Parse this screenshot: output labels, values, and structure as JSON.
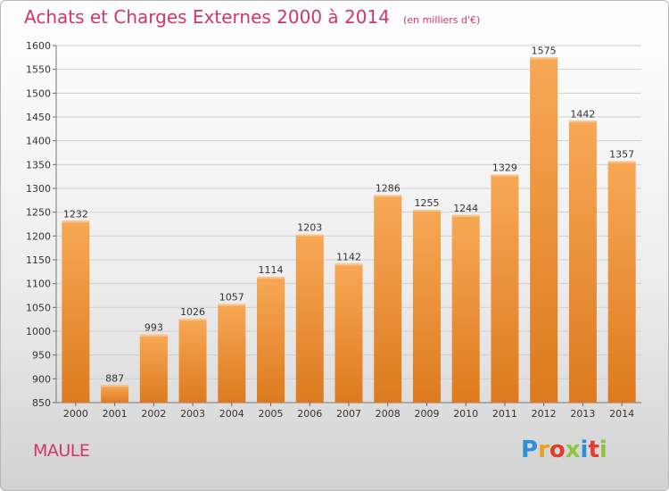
{
  "header": {
    "title": "Achats et Charges Externes 2000 à 2014",
    "unit": "(en milliers d'€)"
  },
  "footer": {
    "commune": "MAULE",
    "logo_letters": [
      "P",
      "r",
      "o",
      "x",
      "i",
      "t",
      "i"
    ],
    "logo_colors": [
      "#2d8fd5",
      "#e7a31f",
      "#e63b2e",
      "#8cc63f",
      "#2d8fd5",
      "#e63b2e",
      "#8cc63f"
    ]
  },
  "colors": {
    "bar_light": "#f7a855",
    "bar_dark": "#dd7a1f",
    "title": "#d2356a",
    "grid": "#d0d0d0"
  },
  "chart_data": {
    "type": "bar",
    "title": "Achats et Charges Externes 2000 à 2014",
    "subtitle": "(en milliers d'€)",
    "categories": [
      "2000",
      "2001",
      "2002",
      "2003",
      "2004",
      "2005",
      "2006",
      "2007",
      "2008",
      "2009",
      "2010",
      "2011",
      "2012",
      "2013",
      "2014"
    ],
    "values": [
      1232,
      887,
      993,
      1026,
      1057,
      1114,
      1203,
      1142,
      1286,
      1255,
      1244,
      1329,
      1575,
      1442,
      1357
    ],
    "ylim": [
      850,
      1600
    ],
    "yticks": [
      850,
      900,
      950,
      1000,
      1050,
      1100,
      1150,
      1200,
      1250,
      1300,
      1350,
      1400,
      1450,
      1500,
      1550,
      1600
    ],
    "grid": true,
    "data_labels": true
  }
}
